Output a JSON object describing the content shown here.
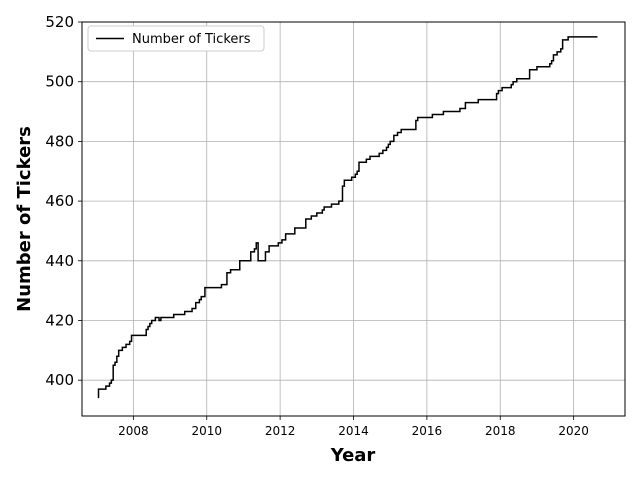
{
  "chart_data": {
    "type": "line",
    "xlabel": "Year",
    "ylabel": "Number of Tickers",
    "xlim": [
      2006.6,
      2021.4
    ],
    "ylim": [
      388,
      520
    ],
    "x_ticks": [
      2008,
      2010,
      2012,
      2014,
      2016,
      2018,
      2020
    ],
    "y_ticks": [
      400,
      420,
      440,
      460,
      480,
      500,
      520
    ],
    "grid": true,
    "legend_position": "top-left",
    "step": true,
    "series": [
      {
        "name": "Number of Tickers",
        "color": "#000000",
        "x": [
          2007.05,
          2007.05,
          2007.1,
          2007.25,
          2007.35,
          2007.4,
          2007.45,
          2007.5,
          2007.55,
          2007.6,
          2007.7,
          2007.75,
          2007.8,
          2007.9,
          2007.95,
          2008.0,
          2008.1,
          2008.35,
          2008.4,
          2008.45,
          2008.5,
          2008.55,
          2008.6,
          2008.7,
          2008.75,
          2008.9,
          2009.1,
          2009.4,
          2009.6,
          2009.7,
          2009.8,
          2009.85,
          2009.95,
          2010.05,
          2010.4,
          2010.55,
          2010.65,
          2010.7,
          2010.9,
          2011.15,
          2011.2,
          2011.3,
          2011.35,
          2011.4,
          2011.5,
          2011.6,
          2011.7,
          2011.95,
          2012.05,
          2012.15,
          2012.4,
          2012.5,
          2012.7,
          2012.85,
          2013.0,
          2013.05,
          2013.15,
          2013.2,
          2013.4,
          2013.6,
          2013.7,
          2013.75,
          2013.95,
          2014.05,
          2014.1,
          2014.15,
          2014.35,
          2014.45,
          2014.7,
          2014.8,
          2014.9,
          2014.95,
          2015.0,
          2015.1,
          2015.2,
          2015.3,
          2015.45,
          2015.7,
          2015.75,
          2016.0,
          2016.15,
          2016.45,
          2016.6,
          2016.9,
          2017.05,
          2017.4,
          2017.9,
          2017.95,
          2018.0,
          2018.05,
          2018.3,
          2018.35,
          2018.45,
          2018.8,
          2019.0,
          2019.35,
          2019.4,
          2019.45,
          2019.55,
          2019.65,
          2019.7,
          2019.85,
          2020.65
        ],
        "values": [
          394,
          397,
          397,
          398,
          399,
          400,
          405,
          406,
          408,
          410,
          411,
          411,
          412,
          413,
          415,
          415,
          415,
          417,
          418,
          419,
          420,
          420,
          421,
          420,
          421,
          421,
          422,
          423,
          424,
          426,
          427,
          428,
          431,
          431,
          432,
          436,
          437,
          437,
          440,
          440,
          443,
          444,
          446,
          440,
          440,
          443,
          445,
          446,
          447,
          449,
          451,
          451,
          454,
          455,
          456,
          456,
          457,
          458,
          459,
          460,
          465,
          467,
          468,
          469,
          470,
          473,
          474,
          475,
          476,
          477,
          478,
          479,
          480,
          482,
          483,
          484,
          484,
          487,
          488,
          488,
          489,
          490,
          490,
          491,
          493,
          494,
          496,
          497,
          497,
          498,
          499,
          500,
          501,
          504,
          505,
          506,
          507,
          509,
          510,
          511,
          514,
          515,
          515
        ]
      }
    ]
  }
}
